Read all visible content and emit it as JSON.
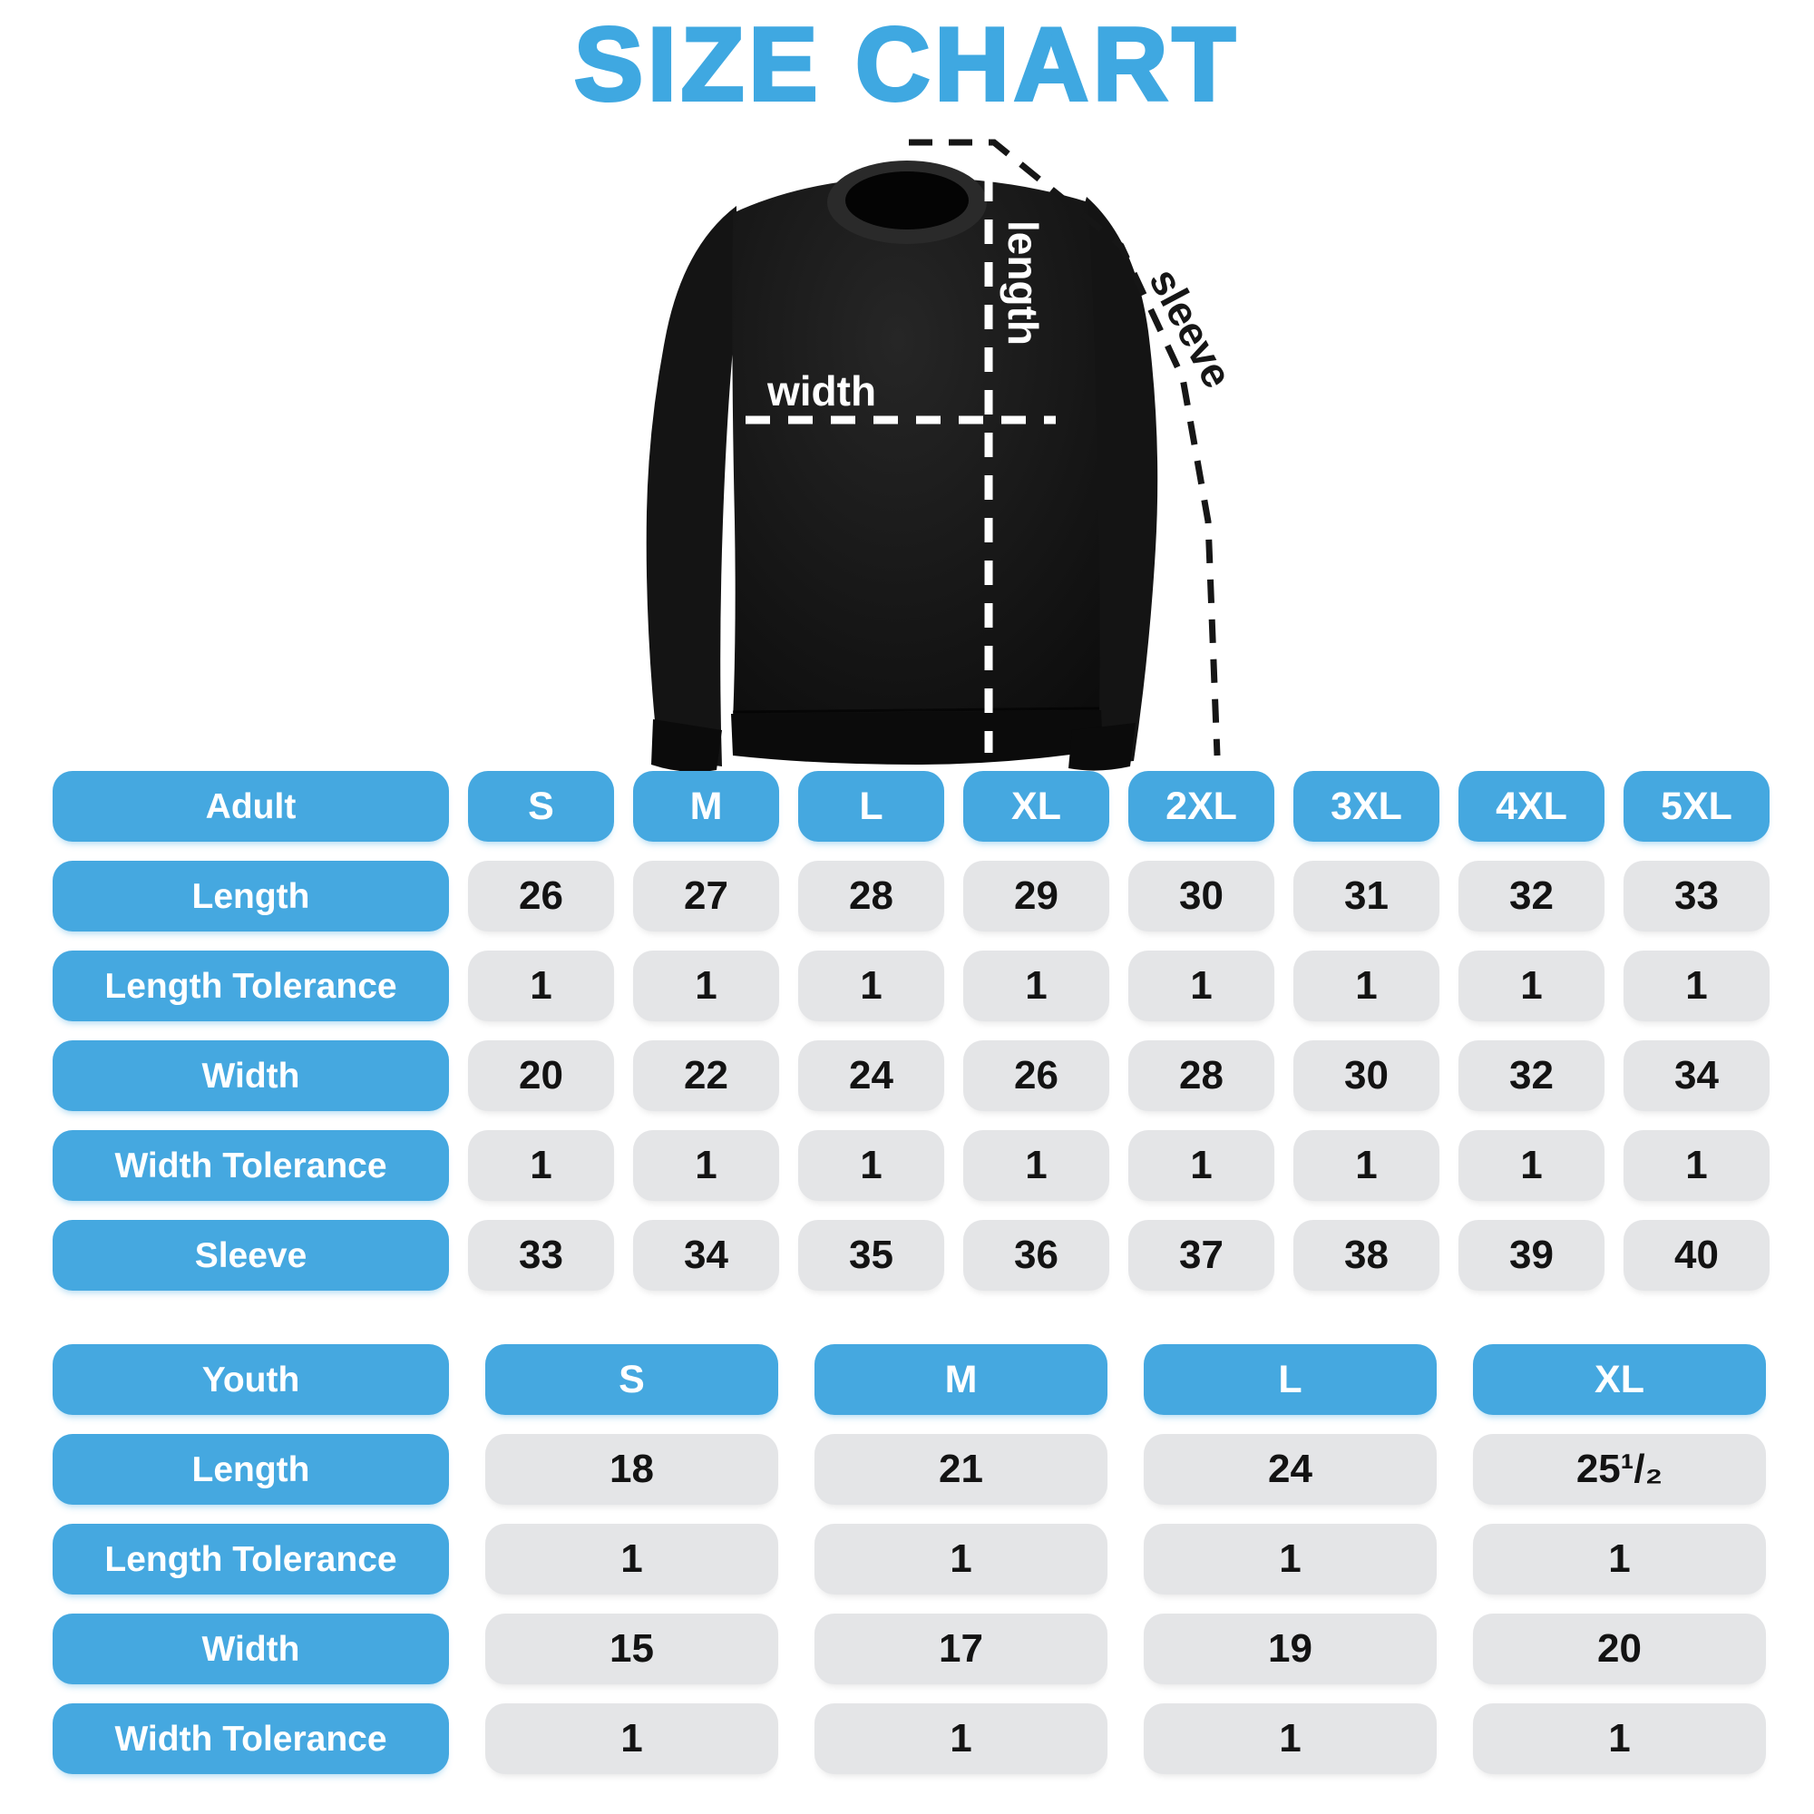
{
  "title": "SIZE CHART",
  "diagram": {
    "length_label": "length",
    "width_label": "width",
    "sleeve_label": "sleeve"
  },
  "adult_table": {
    "header": {
      "label": "Adult",
      "sizes": [
        "S",
        "M",
        "L",
        "XL",
        "2XL",
        "3XL",
        "4XL",
        "5XL"
      ]
    },
    "rows": [
      {
        "label": "Length",
        "values": [
          "26",
          "27",
          "28",
          "29",
          "30",
          "31",
          "32",
          "33"
        ]
      },
      {
        "label": "Length Tolerance",
        "values": [
          "1",
          "1",
          "1",
          "1",
          "1",
          "1",
          "1",
          "1"
        ]
      },
      {
        "label": "Width",
        "values": [
          "20",
          "22",
          "24",
          "26",
          "28",
          "30",
          "32",
          "34"
        ]
      },
      {
        "label": "Width Tolerance",
        "values": [
          "1",
          "1",
          "1",
          "1",
          "1",
          "1",
          "1",
          "1"
        ]
      },
      {
        "label": "Sleeve",
        "values": [
          "33",
          "34",
          "35",
          "36",
          "37",
          "38",
          "39",
          "40"
        ]
      }
    ]
  },
  "youth_table": {
    "header": {
      "label": "Youth",
      "sizes": [
        "S",
        "M",
        "L",
        "XL"
      ]
    },
    "rows": [
      {
        "label": "Length",
        "values": [
          "18",
          "21",
          "24",
          "25¹/₂"
        ]
      },
      {
        "label": "Length Tolerance",
        "values": [
          "1",
          "1",
          "1",
          "1"
        ]
      },
      {
        "label": "Width",
        "values": [
          "15",
          "17",
          "19",
          "20"
        ]
      },
      {
        "label": "Width Tolerance",
        "values": [
          "1",
          "1",
          "1",
          "1"
        ]
      }
    ]
  },
  "colors": {
    "accent_blue": "#45A8E0",
    "title_blue": "#3FA8E1",
    "cell_gray": "#E4E5E7",
    "value_text": "#131313",
    "shirt_black": "#161616"
  },
  "chart_data": [
    {
      "type": "table",
      "title": "Adult size chart (sweatshirt)",
      "columns": [
        "S",
        "M",
        "L",
        "XL",
        "2XL",
        "3XL",
        "4XL",
        "5XL"
      ],
      "rows": [
        {
          "label": "Length",
          "values": [
            26,
            27,
            28,
            29,
            30,
            31,
            32,
            33
          ]
        },
        {
          "label": "Length Tolerance",
          "values": [
            1,
            1,
            1,
            1,
            1,
            1,
            1,
            1
          ]
        },
        {
          "label": "Width",
          "values": [
            20,
            22,
            24,
            26,
            28,
            30,
            32,
            34
          ]
        },
        {
          "label": "Width Tolerance",
          "values": [
            1,
            1,
            1,
            1,
            1,
            1,
            1,
            1
          ]
        },
        {
          "label": "Sleeve",
          "values": [
            33,
            34,
            35,
            36,
            37,
            38,
            39,
            40
          ]
        }
      ]
    },
    {
      "type": "table",
      "title": "Youth size chart (sweatshirt)",
      "columns": [
        "S",
        "M",
        "L",
        "XL"
      ],
      "rows": [
        {
          "label": "Length",
          "values": [
            18,
            21,
            24,
            25.5
          ]
        },
        {
          "label": "Length Tolerance",
          "values": [
            1,
            1,
            1,
            1
          ]
        },
        {
          "label": "Width",
          "values": [
            15,
            17,
            19,
            20
          ]
        },
        {
          "label": "Width Tolerance",
          "values": [
            1,
            1,
            1,
            1
          ]
        }
      ]
    }
  ]
}
